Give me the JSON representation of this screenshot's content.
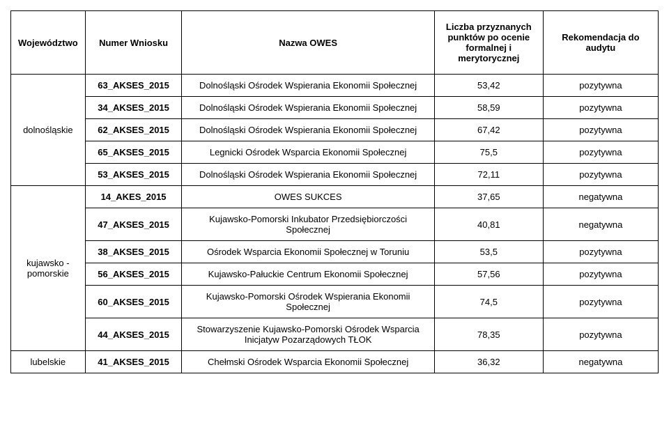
{
  "headers": {
    "wojewodztwo": "Województwo",
    "numer": "Numer Wniosku",
    "nazwa": "Nazwa OWES",
    "liczba": "Liczba przyznanych punktów po ocenie formalnej i merytorycznej",
    "rekomendacja": "Rekomendacja do audytu"
  },
  "groups": [
    {
      "wojewodztwo": "dolnośląskie",
      "rows": [
        {
          "numer": "63_AKSES_2015",
          "nazwa": "Dolnośląski Ośrodek Wspierania Ekonomii Społecznej",
          "pkt": "53,42",
          "rek": "pozytywna"
        },
        {
          "numer": "34_AKSES_2015",
          "nazwa": "Dolnośląski Ośrodek Wspierania Ekonomii Społecznej",
          "pkt": "58,59",
          "rek": "pozytywna"
        },
        {
          "numer": "62_AKSES_2015",
          "nazwa": "Dolnośląski Ośrodek Wspierania Ekonomii Społecznej",
          "pkt": "67,42",
          "rek": "pozytywna"
        },
        {
          "numer": "65_AKSES_2015",
          "nazwa": "Legnicki Ośrodek Wsparcia Ekonomii Społecznej",
          "pkt": "75,5",
          "rek": "pozytywna"
        },
        {
          "numer": "53_AKSES_2015",
          "nazwa": "Dolnośląski Ośrodek Wspierania Ekonomii Społecznej",
          "pkt": "72,11",
          "rek": "pozytywna"
        }
      ]
    },
    {
      "wojewodztwo": "kujawsko - pomorskie",
      "rows": [
        {
          "numer": "14_AKES_2015",
          "nazwa": "OWES SUKCES",
          "pkt": "37,65",
          "rek": "negatywna"
        },
        {
          "numer": "47_AKSES_2015",
          "nazwa": "Kujawsko-Pomorski Inkubator Przedsiębiorczości Społecznej",
          "pkt": "40,81",
          "rek": "negatywna"
        },
        {
          "numer": "38_AKSES_2015",
          "nazwa": "Ośrodek Wsparcia Ekonomii Społecznej w Toruniu",
          "pkt": "53,5",
          "rek": "pozytywna"
        },
        {
          "numer": "56_AKSES_2015",
          "nazwa": "Kujawsko-Pałuckie Centrum Ekonomii Społecznej",
          "pkt": "57,56",
          "rek": "pozytywna"
        },
        {
          "numer": "60_AKSES_2015",
          "nazwa": "Kujawsko-Pomorski Ośrodek Wspierania Ekonomii Społecznej",
          "pkt": "74,5",
          "rek": "pozytywna"
        },
        {
          "numer": "44_AKSES_2015",
          "nazwa": "Stowarzyszenie Kujawsko-Pomorski Ośrodek Wsparcia Inicjatyw Pozarządowych TŁOK",
          "pkt": "78,35",
          "rek": "pozytywna"
        }
      ]
    },
    {
      "wojewodztwo": "lubelskie",
      "rows": [
        {
          "numer": "41_AKSES_2015",
          "nazwa": "Chełmski Ośrodek Wsparcia Ekonomii Społecznej",
          "pkt": "36,32",
          "rek": "negatywna"
        }
      ]
    }
  ]
}
